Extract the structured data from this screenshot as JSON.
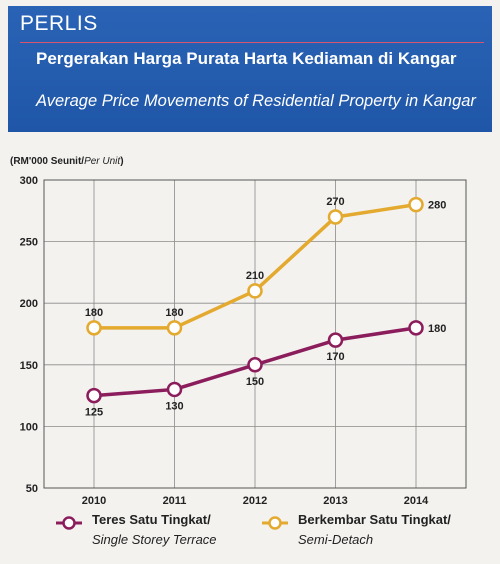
{
  "header": {
    "region": "PERLIS",
    "title_ms": "Pergerakan Harga Purata Harta Kediaman di Kangar",
    "title_en": "Average Price Movements of Residential Property in Kangar"
  },
  "unit_label": {
    "main": "(RM'000 Seunit/",
    "italic": "Per Unit",
    "close": ")"
  },
  "colors": {
    "terrace": "#8c1d5c",
    "semi_detach": "#e4a92f",
    "header_bg": "#2360b3"
  },
  "chart_data": {
    "type": "line",
    "x": [
      "2010",
      "2011",
      "2012",
      "2013",
      "2014"
    ],
    "ylim": [
      50,
      300
    ],
    "yticks": [
      50,
      100,
      150,
      200,
      250,
      300
    ],
    "grid": true,
    "legend_position": "bottom",
    "series": [
      {
        "key": "terrace",
        "name_ms": "Teres Satu Tingkat/",
        "name_en": "Single Storey Terrace",
        "values": [
          125,
          130,
          150,
          170,
          180
        ],
        "labels": [
          "125",
          "130",
          "150",
          "170",
          "180"
        ]
      },
      {
        "key": "semi_detach",
        "name_ms": "Berkembar Satu Tingkat/",
        "name_en": "Semi-Detach",
        "values": [
          180,
          180,
          210,
          270,
          280
        ],
        "labels": [
          "180",
          "180",
          "210",
          "270",
          "280"
        ]
      }
    ]
  }
}
